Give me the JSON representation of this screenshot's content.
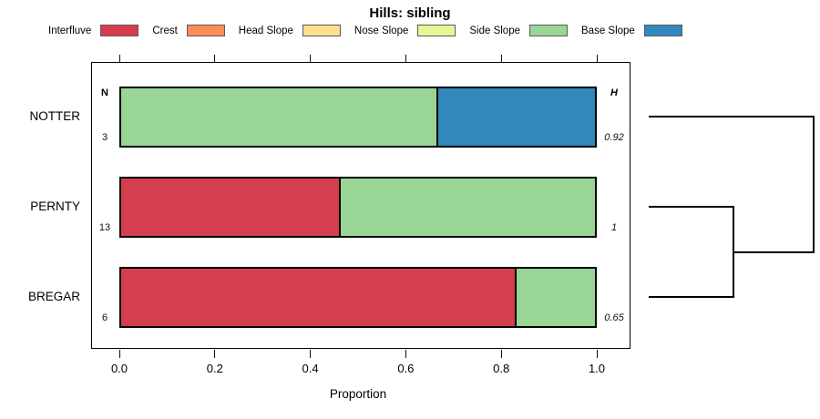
{
  "chart_data": {
    "type": "bar",
    "orientation": "horizontal",
    "stacked": true,
    "title": "Hills: sibling",
    "xlabel": "Proportion",
    "xlim": [
      0,
      1
    ],
    "xticks": [
      0,
      0.2,
      0.4,
      0.6,
      0.8,
      1.0
    ],
    "xtick_labels": [
      "0.0",
      "0.2",
      "0.4",
      "0.6",
      "0.8",
      "1.0"
    ],
    "grid": false,
    "legend": {
      "position": "top",
      "items": [
        {
          "label": "Interfluve",
          "color": "#d53e4f"
        },
        {
          "label": "Crest",
          "color": "#fc8d59"
        },
        {
          "label": "Head Slope",
          "color": "#fee08b"
        },
        {
          "label": "Nose Slope",
          "color": "#e6f598"
        },
        {
          "label": "Side Slope",
          "color": "#99d594"
        },
        {
          "label": "Base Slope",
          "color": "#3288bd"
        }
      ]
    },
    "n_column_header": "N",
    "h_column_header": "H",
    "rows": [
      {
        "label": "NOTTER",
        "n": "3",
        "h": "0.92",
        "segments": [
          {
            "name": "Side Slope",
            "color": "#99d594",
            "value": 0.667
          },
          {
            "name": "Base Slope",
            "color": "#3288bd",
            "value": 0.333
          }
        ]
      },
      {
        "label": "PERNTY",
        "n": "13",
        "h": "1",
        "segments": [
          {
            "name": "Interfluve",
            "color": "#d53e4f",
            "value": 0.462
          },
          {
            "name": "Side Slope",
            "color": "#99d594",
            "value": 0.538
          }
        ]
      },
      {
        "label": "BREGAR",
        "n": "6",
        "h": "0.65",
        "segments": [
          {
            "name": "Interfluve",
            "color": "#d53e4f",
            "value": 0.833
          },
          {
            "name": "Side Slope",
            "color": "#99d594",
            "value": 0.167
          }
        ]
      }
    ],
    "dendrogram": {
      "position": "right",
      "leaf_order": [
        "NOTTER",
        "PERNTY",
        "BREGAR"
      ],
      "merges": [
        {
          "members": [
            "PERNTY",
            "BREGAR"
          ],
          "order": 1
        },
        {
          "members": [
            "NOTTER",
            "PERNTY+BREGAR"
          ],
          "order": 2
        }
      ]
    }
  }
}
